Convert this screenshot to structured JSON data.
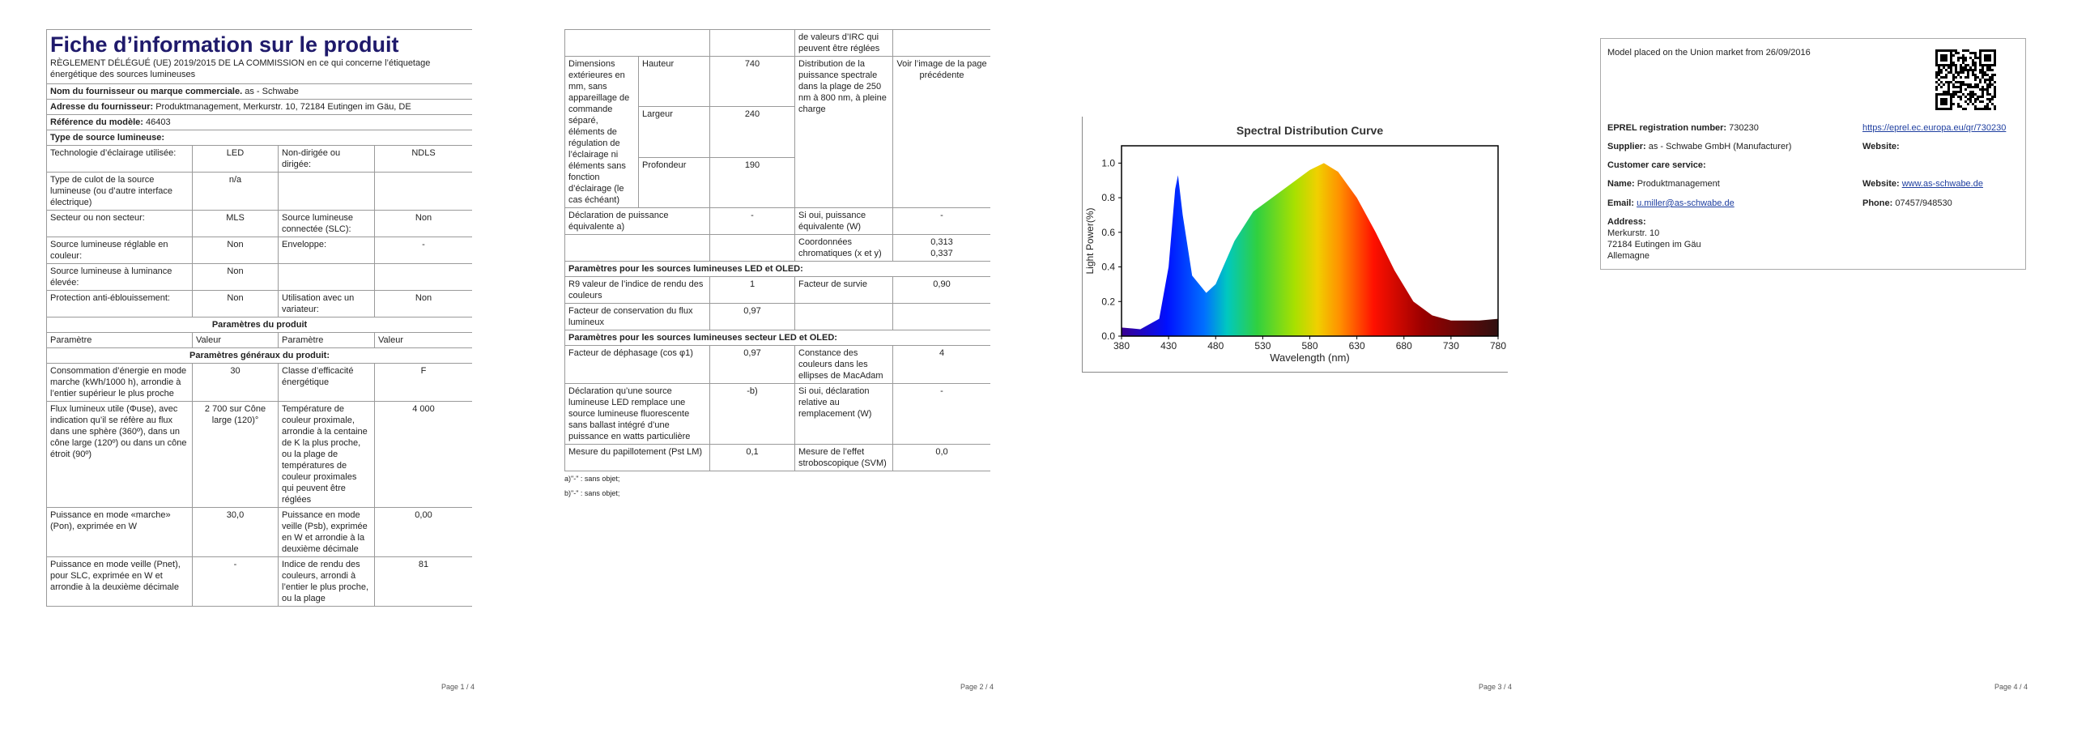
{
  "page1": {
    "title": "Fiche d’information sur le produit",
    "subtitle": "RÈGLEMENT DÉLÉGUÉ (UE) 2019/2015 DE LA COMMISSION en ce qui concerne l’étiquetage énergétique des sources lumineuses",
    "supplier": {
      "label": "Nom du fournisseur ou marque commerciale.",
      "value": "as - Schwabe"
    },
    "address": {
      "label": "Adresse du fournisseur:",
      "value": "Produktmanagement, Merkurstr. 10, 72184 Eutingen im Gäu, DE"
    },
    "model": {
      "label": "Référence du modèle:",
      "value": "46403"
    },
    "source_type": "Type de source lumineuse:",
    "rows": [
      [
        "Technologie d’éclairage utilisée:",
        "LED",
        "Non-dirigée ou dirigée:",
        "NDLS"
      ],
      [
        "Type de culot de la source lumineuse (ou d’autre interface électrique)",
        "n/a",
        null,
        null
      ],
      [
        "Secteur ou non secteur:",
        "MLS",
        "Source lumineuse connectée (SLC):",
        "Non"
      ],
      [
        "Source lumineuse réglable en couleur:",
        "Non",
        "Enveloppe:",
        "-"
      ],
      [
        "Source lumineuse à luminance élevée:",
        "Non",
        null,
        null
      ],
      [
        "Protection anti-éblouissement:",
        "Non",
        "Utilisation avec un variateur:",
        "Non"
      ]
    ],
    "params_title": "Paramètres du produit",
    "params_header": [
      "Paramètre",
      "Valeur",
      "Paramètre",
      "Valeur"
    ],
    "general_title": "Paramètres généraux du produit:",
    "general_rows": [
      [
        "Consommation d’énergie en mode marche (kWh/1000 h), arrondie à l’entier supérieur le plus proche",
        "30",
        "Classe d’efficacité énergétique",
        "F"
      ],
      [
        "Flux lumineux utile (Φuse), avec indication qu’il se réfère au flux dans une sphère (360º), dans un cône large (120º) ou dans un cône étroit (90º)",
        "2 700 sur Cône large (120)°",
        "Température de couleur proximale, arrondie à la centaine de K la plus proche, ou la plage de températures de couleur proximales qui peuvent être réglées",
        "4 000"
      ],
      [
        "Puissance en mode «marche» (Pon), exprimée en W",
        "30,0",
        "Puissance en mode veille (Psb), exprimée en W et arrondie à la deuxième décimale",
        "0,00"
      ],
      [
        "Puissance en mode veille (Pnet), pour SLC, exprimée en W et arrondie à la deuxième décimale",
        "-",
        "Indice de rendu des couleurs, arrondi à l’entier le plus proche, ou la plage",
        "81"
      ]
    ],
    "page_number": "Page 1 / 4"
  },
  "page2": {
    "continuation": "de valeurs d’IRC qui peuvent être réglées",
    "dimensions": {
      "label": "Dimensions extérieures en mm, sans appareillage de commande séparé, éléments de régulation de l’éclairage ni éléments sans fonction d’éclairage (le cas échéant)",
      "items": [
        {
          "name": "Hauteur",
          "value": "740"
        },
        {
          "name": "Largeur",
          "value": "240"
        },
        {
          "name": "Profondeur",
          "value": "190"
        }
      ]
    },
    "spectral": {
      "label": "Distribution de la puissance spectrale dans la plage de 250 nm à 800 nm, à pleine charge",
      "value": "Voir l’image de la page précédente"
    },
    "rows": [
      [
        "Déclaration de puissance équivalente a)",
        "-",
        "Si oui, puissance équivalente (W)",
        "-"
      ],
      [
        null,
        null,
        "Coordonnées chromatiques (x et y)",
        [
          "0,313",
          "0,337"
        ]
      ]
    ],
    "led_title": "Paramètres pour les sources lumineuses LED et OLED:",
    "led_rows": [
      [
        "R9 valeur de l’indice de rendu des couleurs",
        "1",
        "Facteur de survie",
        "0,90"
      ],
      [
        "Facteur de conservation du flux lumineux",
        "0,97",
        null,
        null
      ]
    ],
    "mains_title": "Paramètres pour les sources lumineuses secteur LED et OLED:",
    "mains_rows": [
      [
        "Facteur de déphasage (cos φ1)",
        "0,97",
        "Constance des couleurs dans les ellipses de MacAdam",
        "4"
      ],
      [
        "Déclaration qu’une source lumineuse LED remplace une source lumineuse fluorescente sans ballast intégré d’une puissance en watts particulière",
        "-b)",
        "Si oui, déclaration relative au remplacement (W)",
        "-"
      ],
      [
        "Mesure du papillotement (Pst LM)",
        "0,1",
        "Mesure de l’effet stroboscopique (SVM)",
        "0,0"
      ]
    ],
    "footnotes": [
      "a)\"-\" : sans objet;",
      "b)\"-\" : sans objet;"
    ],
    "page_number": "Page 2 / 4"
  },
  "page3": {
    "chart_data": {
      "type": "area",
      "title": "Spectral Distribution Curve",
      "x_label": "Wavelength (nm)",
      "y_label": "Light Power(%)",
      "x": [
        380,
        400,
        420,
        430,
        437,
        440,
        445,
        455,
        470,
        480,
        500,
        520,
        540,
        560,
        580,
        595,
        610,
        630,
        650,
        670,
        690,
        710,
        730,
        760,
        780
      ],
      "values": [
        0.05,
        0.04,
        0.1,
        0.4,
        0.85,
        0.93,
        0.7,
        0.35,
        0.25,
        0.3,
        0.55,
        0.72,
        0.8,
        0.88,
        0.96,
        1.0,
        0.95,
        0.8,
        0.6,
        0.38,
        0.2,
        0.12,
        0.09,
        0.09,
        0.1
      ],
      "xlim": [
        380,
        780
      ],
      "xticks": [
        380,
        430,
        480,
        530,
        580,
        630,
        680,
        730,
        780
      ],
      "ylim": [
        0,
        1.1
      ],
      "yticks": [
        {
          "value": 0,
          "label": "0.0"
        },
        0.2,
        0.4,
        0.6,
        0.8,
        {
          "value": 1,
          "label": "1.0"
        }
      ]
    },
    "page_number": "Page 3 / 4"
  },
  "page4": {
    "placed": "Model placed on the Union market from 26/09/2016",
    "eprel": {
      "label": "EPREL registration number:",
      "value": "730230",
      "link": "https://eprel.ec.europa.eu/qr/730230"
    },
    "supplier": {
      "label": "Supplier:",
      "value": "as - Schwabe GmbH (Manufacturer)"
    },
    "website_label": "Website:",
    "customer_care": "Customer care service:",
    "name": {
      "label": "Name:",
      "value": "Produktmanagement"
    },
    "website": {
      "label": "Website:",
      "value": "www.as-schwabe.de"
    },
    "email": {
      "label": "Email:",
      "value": "u.miller@as-schwabe.de"
    },
    "phone": {
      "label": "Phone:",
      "value": "07457/948530"
    },
    "address": {
      "label": "Address:",
      "lines": [
        "Merkurstr. 10",
        "72184 Eutingen im Gäu",
        "Allemagne"
      ]
    },
    "page_number": "Page 4 / 4"
  }
}
